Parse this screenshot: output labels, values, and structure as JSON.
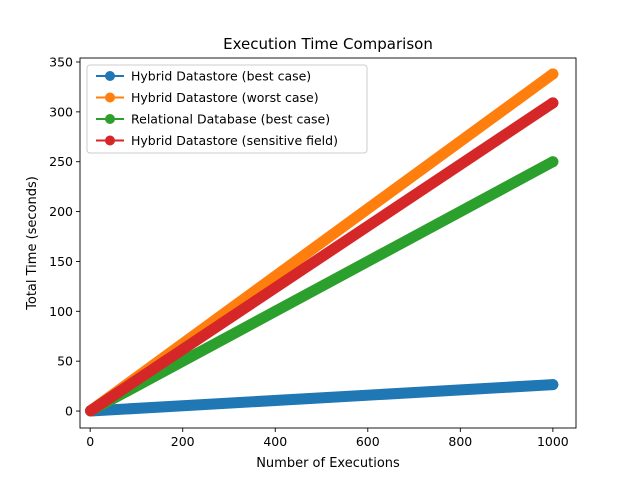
{
  "chart_data": {
    "type": "line",
    "title": "Execution Time Comparison",
    "xlabel": "Number of Executions",
    "ylabel": "Total Time (seconds)",
    "xlim": [
      -22,
      1050
    ],
    "ylim": [
      -17,
      354
    ],
    "xticks": [
      0,
      200,
      400,
      600,
      800,
      1000
    ],
    "yticks": [
      0,
      50,
      100,
      150,
      200,
      250,
      300,
      350
    ],
    "x_range": [
      1,
      1000
    ],
    "legend_position": "upper-left",
    "grid": false,
    "markers": "circle",
    "series": [
      {
        "name": "Hybrid Datastore (best case)",
        "color": "#1f77b4",
        "x": [
          1,
          1000
        ],
        "y": [
          0.03,
          26.5
        ]
      },
      {
        "name": "Hybrid Datastore (worst case)",
        "color": "#ff7f0e",
        "x": [
          1,
          1000
        ],
        "y": [
          0.34,
          338
        ]
      },
      {
        "name": "Relational Database (best case)",
        "color": "#2ca02c",
        "x": [
          1,
          1000
        ],
        "y": [
          0.25,
          250
        ]
      },
      {
        "name": "Hybrid Datastore (sensitive field)",
        "color": "#d62728",
        "x": [
          1,
          1000
        ],
        "y": [
          0.31,
          309
        ]
      }
    ]
  }
}
